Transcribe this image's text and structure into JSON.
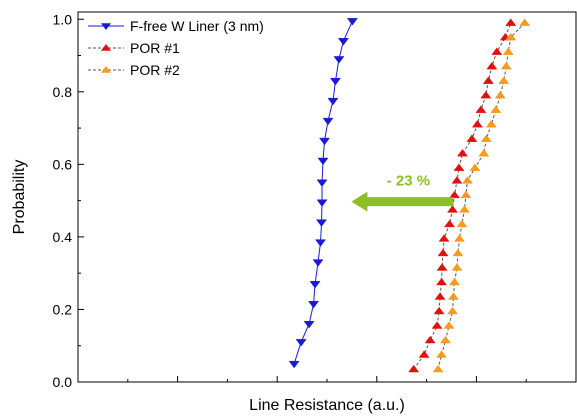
{
  "chart_data": {
    "type": "scatter",
    "title": "",
    "xlabel": "Line Resistance (a.u.)",
    "ylabel": "Probability",
    "xlim": [
      0,
      100
    ],
    "ylim": [
      0,
      1.02
    ],
    "x_tick_labels_shown": false,
    "y_ticks": [
      0.0,
      0.2,
      0.4,
      0.6,
      0.8,
      1.0
    ],
    "y_tick_labels": [
      "0.0",
      "0.2",
      "0.4",
      "0.6",
      "0.8",
      "1.0"
    ],
    "grid": false,
    "legend_position": "top-left",
    "annotation": {
      "text": "- 23 %",
      "color": "#8cbf26",
      "from_x": 75.4,
      "to_x": 54.9,
      "y": 0.5
    },
    "series": [
      {
        "name": "F-free W Liner (3 nm)",
        "marker": "triangle-down",
        "color": "#1a1ad6",
        "line_style": "solid",
        "points": [
          {
            "x": 43.4,
            "y": 0.05
          },
          {
            "x": 44.8,
            "y": 0.11
          },
          {
            "x": 46.4,
            "y": 0.16
          },
          {
            "x": 47.3,
            "y": 0.215
          },
          {
            "x": 47.6,
            "y": 0.27
          },
          {
            "x": 48.2,
            "y": 0.33
          },
          {
            "x": 48.7,
            "y": 0.385
          },
          {
            "x": 48.9,
            "y": 0.44
          },
          {
            "x": 49.0,
            "y": 0.495
          },
          {
            "x": 49.0,
            "y": 0.55
          },
          {
            "x": 49.2,
            "y": 0.61
          },
          {
            "x": 49.5,
            "y": 0.665
          },
          {
            "x": 50.2,
            "y": 0.72
          },
          {
            "x": 51.2,
            "y": 0.775
          },
          {
            "x": 51.7,
            "y": 0.83
          },
          {
            "x": 52.4,
            "y": 0.89
          },
          {
            "x": 53.3,
            "y": 0.94
          },
          {
            "x": 55.1,
            "y": 0.995
          }
        ]
      },
      {
        "name": "POR #1",
        "marker": "triangle-up",
        "color": "#e01010",
        "line_style": "dashed",
        "points": [
          {
            "x": 67.4,
            "y": 0.035
          },
          {
            "x": 69.5,
            "y": 0.075
          },
          {
            "x": 70.7,
            "y": 0.115
          },
          {
            "x": 72.1,
            "y": 0.155
          },
          {
            "x": 72.5,
            "y": 0.195
          },
          {
            "x": 72.7,
            "y": 0.235
          },
          {
            "x": 73.0,
            "y": 0.275
          },
          {
            "x": 73.1,
            "y": 0.315
          },
          {
            "x": 73.3,
            "y": 0.355
          },
          {
            "x": 73.5,
            "y": 0.395
          },
          {
            "x": 74.6,
            "y": 0.435
          },
          {
            "x": 75.2,
            "y": 0.475
          },
          {
            "x": 75.6,
            "y": 0.515
          },
          {
            "x": 76.1,
            "y": 0.555
          },
          {
            "x": 76.5,
            "y": 0.59
          },
          {
            "x": 77.2,
            "y": 0.63
          },
          {
            "x": 79.1,
            "y": 0.67
          },
          {
            "x": 80.2,
            "y": 0.71
          },
          {
            "x": 80.9,
            "y": 0.75
          },
          {
            "x": 81.9,
            "y": 0.79
          },
          {
            "x": 82.4,
            "y": 0.83
          },
          {
            "x": 83.1,
            "y": 0.87
          },
          {
            "x": 84.1,
            "y": 0.91
          },
          {
            "x": 85.8,
            "y": 0.95
          },
          {
            "x": 86.9,
            "y": 0.99
          }
        ]
      },
      {
        "name": "POR #2",
        "marker": "triangle-up",
        "color": "#f79b1c",
        "line_style": "dashed",
        "points": [
          {
            "x": 72.3,
            "y": 0.035
          },
          {
            "x": 73.0,
            "y": 0.075
          },
          {
            "x": 73.8,
            "y": 0.115
          },
          {
            "x": 74.5,
            "y": 0.155
          },
          {
            "x": 75.2,
            "y": 0.195
          },
          {
            "x": 75.4,
            "y": 0.235
          },
          {
            "x": 75.6,
            "y": 0.275
          },
          {
            "x": 76.1,
            "y": 0.315
          },
          {
            "x": 76.3,
            "y": 0.355
          },
          {
            "x": 76.6,
            "y": 0.395
          },
          {
            "x": 77.1,
            "y": 0.435
          },
          {
            "x": 77.6,
            "y": 0.475
          },
          {
            "x": 77.9,
            "y": 0.515
          },
          {
            "x": 78.2,
            "y": 0.555
          },
          {
            "x": 79.7,
            "y": 0.59
          },
          {
            "x": 81.5,
            "y": 0.63
          },
          {
            "x": 82.0,
            "y": 0.67
          },
          {
            "x": 83.0,
            "y": 0.71
          },
          {
            "x": 83.9,
            "y": 0.75
          },
          {
            "x": 84.8,
            "y": 0.79
          },
          {
            "x": 85.5,
            "y": 0.83
          },
          {
            "x": 86.0,
            "y": 0.87
          },
          {
            "x": 86.4,
            "y": 0.91
          },
          {
            "x": 86.9,
            "y": 0.95
          },
          {
            "x": 89.7,
            "y": 0.99
          }
        ]
      }
    ]
  }
}
